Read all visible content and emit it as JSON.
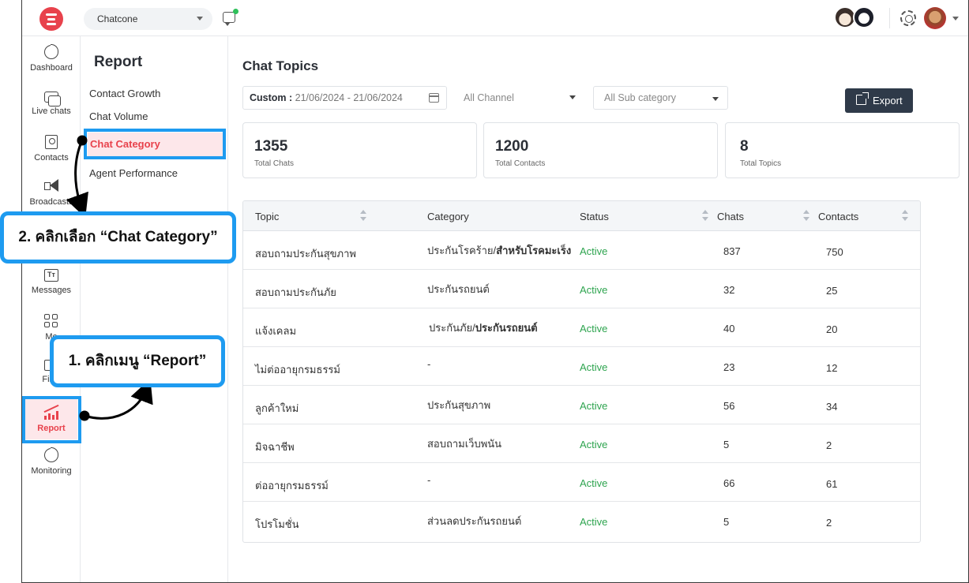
{
  "topbar": {
    "workspace": "Chatcone",
    "icons": [
      "app-logo-icon",
      "chat-bubble-icon",
      "gear-icon"
    ]
  },
  "rail": {
    "items": [
      {
        "label": "Dashboard",
        "icon": "pie-chart-icon"
      },
      {
        "label": "Live chats",
        "icon": "chat-icon"
      },
      {
        "label": "Contacts",
        "icon": "contacts-icon"
      },
      {
        "label": "Broadcasts",
        "icon": "megaphone-icon"
      },
      {
        "label": "Messages",
        "icon": "text-icon"
      },
      {
        "label": "Me",
        "icon": "grid-icon"
      },
      {
        "label": "Files",
        "icon": "folder-icon"
      },
      {
        "label": "Report",
        "icon": "bar-chart-icon"
      },
      {
        "label": "Monitoring",
        "icon": "pie-chart-icon"
      }
    ]
  },
  "subnav": {
    "title": "Report",
    "items": [
      "Contact Growth",
      "Chat Volume",
      "Chat Category",
      "Agent Performance"
    ]
  },
  "main": {
    "title": "Chat Topics",
    "date_label": "Custom :",
    "date_range": "21/06/2024 - 21/06/2024",
    "channel": "All Channel",
    "subcategory": "All Sub category",
    "export_label": "Export",
    "stats": [
      {
        "value": "1355",
        "label": "Total Chats"
      },
      {
        "value": "1200",
        "label": "Total Contacts"
      },
      {
        "value": "8",
        "label": "Total Topics"
      }
    ],
    "columns": [
      "Topic",
      "Category",
      "Status",
      "Chats",
      "Contacts"
    ],
    "rows": [
      {
        "topic": "สอบถามประกันสุขภาพ",
        "cat_a": "ประกันโรคร้าย/",
        "cat_b": "สำหรับโรคมะเร็ง",
        "status": "Active",
        "chats": "837",
        "contacts": "750"
      },
      {
        "topic": "สอบถามประกันภัย",
        "cat_a": "ประกันรถยนต์",
        "cat_b": "",
        "status": "Active",
        "chats": "32",
        "contacts": "25"
      },
      {
        "topic": "แจ้งเคลม",
        "cat_a": "ประกันภัย/",
        "cat_b": "ประกันรถยนต์",
        "status": "Active",
        "chats": "40",
        "contacts": "20"
      },
      {
        "topic": "ไม่ต่ออายุกรมธรรม์",
        "cat_a": "-",
        "cat_b": "",
        "status": "Active",
        "chats": "23",
        "contacts": "12"
      },
      {
        "topic": "ลูกค้าใหม่",
        "cat_a": "ประกันสุขภาพ",
        "cat_b": "",
        "status": "Active",
        "chats": "56",
        "contacts": "34"
      },
      {
        "topic": "มิจฉาชีพ",
        "cat_a": "สอบถามเว็บพนัน",
        "cat_b": "",
        "status": "Active",
        "chats": "5",
        "contacts": "2"
      },
      {
        "topic": "ต่ออายุกรมธรรม์",
        "cat_a": "-",
        "cat_b": "",
        "status": "Active",
        "chats": "66",
        "contacts": "61"
      },
      {
        "topic": "โปรโมชั่น",
        "cat_a": "ส่วนลดประกันรถยนต์",
        "cat_b": "",
        "status": "Active",
        "chats": "5",
        "contacts": "2"
      }
    ]
  },
  "annotations": {
    "step1": "1. คลิกเมนู “Report”",
    "step2": "2. คลิกเลือก “Chat Category”",
    "color": "#1e9bf0"
  },
  "colors": {
    "accent": "#e8424c",
    "active_status": "#2ea44f",
    "export_bg": "#2f3a49"
  }
}
